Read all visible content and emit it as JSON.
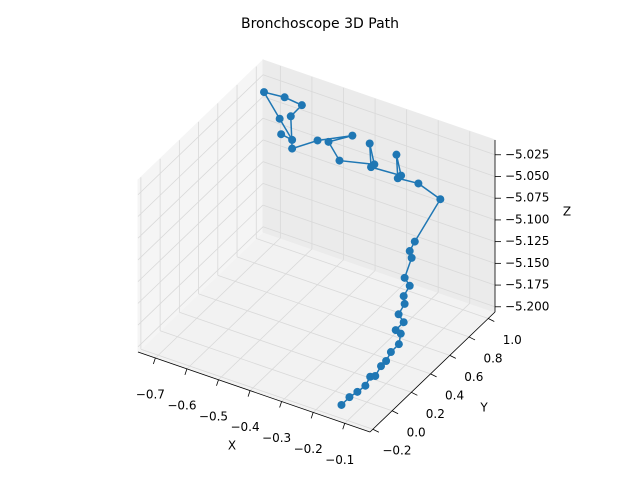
{
  "chart_data": {
    "type": "line3d",
    "title": "Bronchoscope 3D Path",
    "xlabel": "X",
    "ylabel": "Y",
    "zlabel": "Z",
    "color": "#1f77b4",
    "grid": true,
    "x": [
      -0.15,
      -0.14,
      -0.13,
      -0.12,
      -0.12,
      -0.11,
      -0.11,
      -0.1,
      -0.1,
      -0.09,
      -0.09,
      -0.1,
      -0.09,
      -0.1,
      -0.09,
      -0.09,
      -0.08,
      -0.09,
      -0.08,
      -0.08,
      -0.07,
      -0.05,
      -0.15,
      -0.2,
      -0.25,
      -0.22,
      -0.3,
      -0.35,
      -0.32,
      -0.4,
      -0.45,
      -0.42,
      -0.5,
      -0.55,
      -0.6,
      -0.58,
      -0.65,
      -0.7,
      -0.62,
      -0.55,
      -0.6
    ],
    "y": [
      -0.1,
      -0.05,
      0,
      0.05,
      0.1,
      0.12,
      0.18,
      0.2,
      0.25,
      0.3,
      0.32,
      0.3,
      0.35,
      0.33,
      0.36,
      0.35,
      0.38,
      0.36,
      0.4,
      0.38,
      0.4,
      0.6,
      0.7,
      0.65,
      0.8,
      0.75,
      0.7,
      0.85,
      0.8,
      0.7,
      0.75,
      0.9,
      0.8,
      0.7,
      0.85,
      0.9,
      0.95,
      0.9,
      0.8,
      0.7,
      0.75
    ],
    "z": [
      -5.205,
      -5.2,
      -5.198,
      -5.195,
      -5.19,
      -5.19,
      -5.185,
      -5.18,
      -5.175,
      -5.17,
      -5.16,
      -5.155,
      -5.15,
      -5.14,
      -5.13,
      -5.12,
      -5.11,
      -5.1,
      -5.08,
      -5.07,
      -5.06,
      -5.03,
      -5.035,
      -5.03,
      -5.025,
      -5.04,
      -5.035,
      -5.03,
      -5.045,
      -5.04,
      -5.03,
      -5.035,
      -5.04,
      -5.045,
      -5.03,
      -5.02,
      -5.025,
      -5.02,
      -5.03,
      -5.035,
      -5.04
    ],
    "xlim": [
      -0.755,
      -0.02
    ],
    "ylim": [
      -0.23,
      1.07
    ],
    "zlim": [
      -5.206,
      -5.008
    ],
    "xticks": [
      {
        "value": -0.7,
        "label": "−0.7"
      },
      {
        "value": -0.6,
        "label": "−0.6"
      },
      {
        "value": -0.5,
        "label": "−0.5"
      },
      {
        "value": -0.4,
        "label": "−0.4"
      },
      {
        "value": -0.3,
        "label": "−0.3"
      },
      {
        "value": -0.2,
        "label": "−0.2"
      },
      {
        "value": -0.1,
        "label": "−0.1"
      }
    ],
    "yticks": [
      {
        "value": -0.2,
        "label": "−0.2"
      },
      {
        "value": 0,
        "label": "0.0"
      },
      0.2,
      0.4,
      0.6,
      0.8,
      {
        "value": 1,
        "label": "1.0"
      }
    ],
    "zticks": [
      {
        "value": -5.2,
        "label": "−5.200"
      },
      {
        "value": -5.175,
        "label": "−5.175"
      },
      {
        "value": -5.15,
        "label": "−5.150"
      },
      {
        "value": -5.125,
        "label": "−5.125"
      },
      {
        "value": -5.1,
        "label": "−5.100"
      },
      {
        "value": -5.075,
        "label": "−5.075"
      },
      {
        "value": -5.05,
        "label": "−5.050"
      },
      {
        "value": -5.025,
        "label": "−5.025"
      }
    ]
  }
}
